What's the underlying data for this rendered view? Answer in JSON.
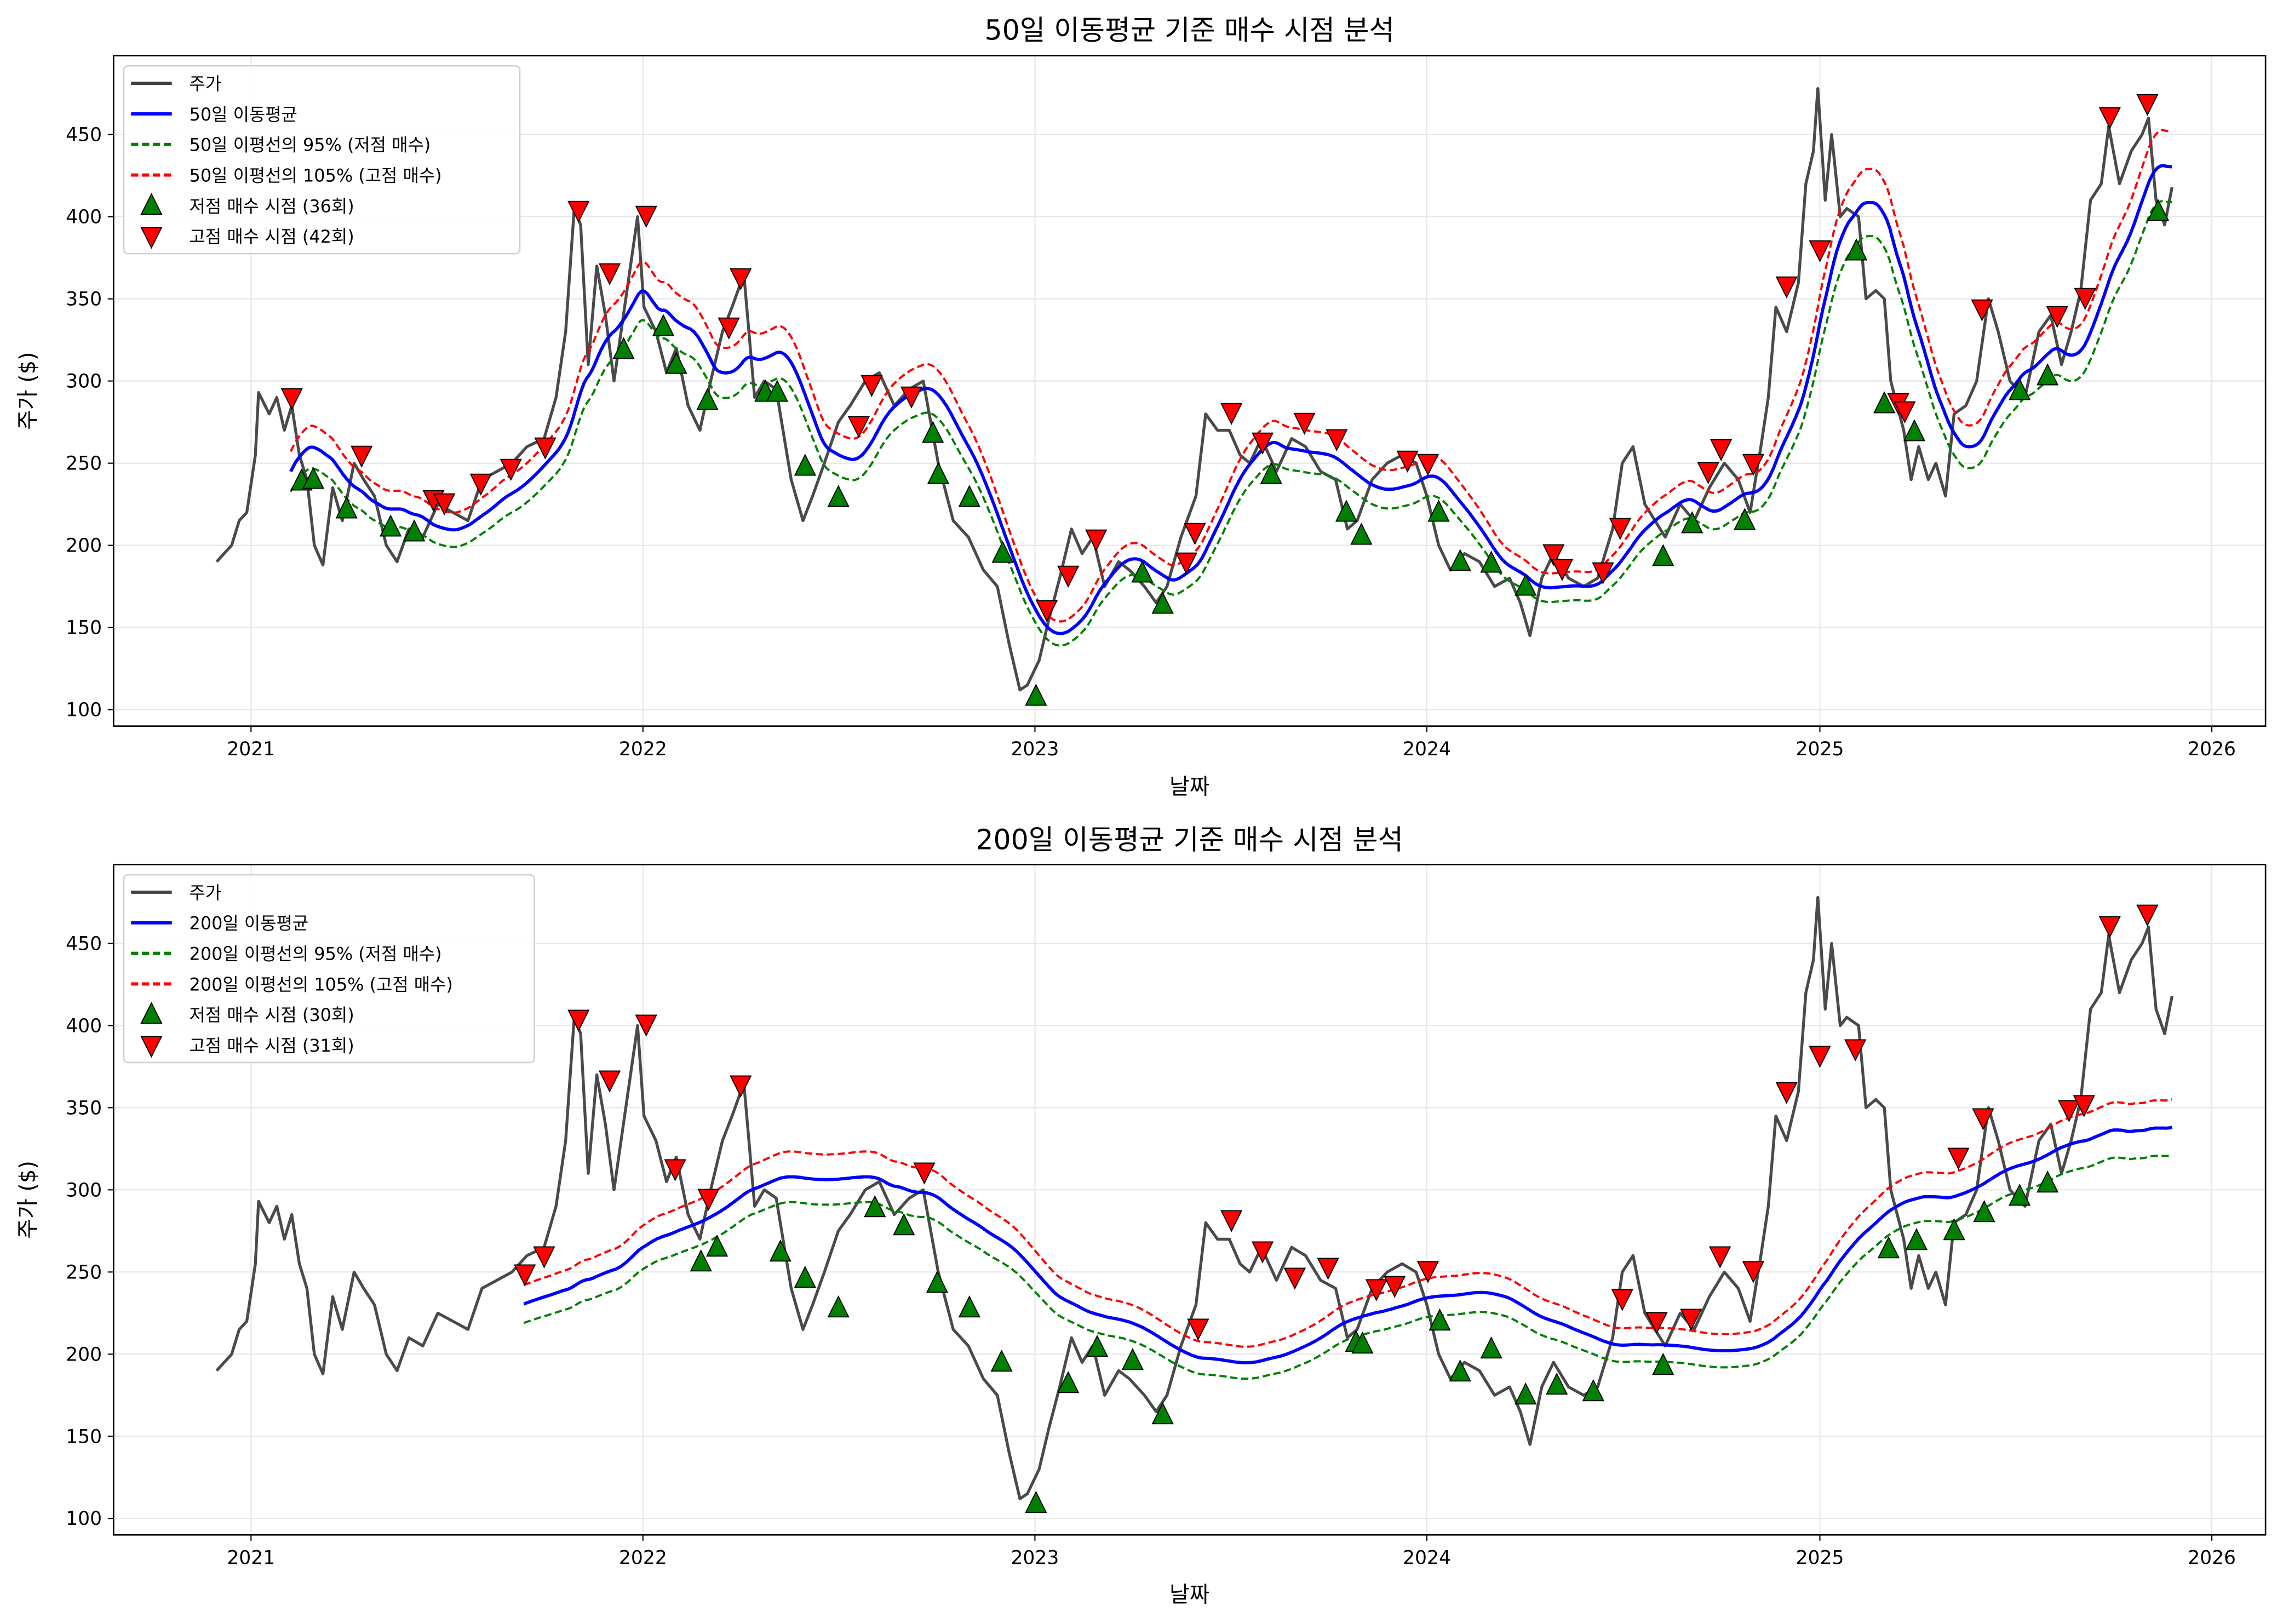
{
  "chart_data": [
    {
      "type": "line",
      "title": "50일 이동평균 기준 매수 시점 분석",
      "xlabel": "날짜",
      "ylabel": "주가 ($)",
      "xlim": [
        "2020-08-26",
        "2026-02-20"
      ],
      "ylim": [
        90,
        498
      ],
      "xticks": [
        "2021",
        "2022",
        "2023",
        "2024",
        "2025",
        "2026"
      ],
      "yticks": [
        100,
        150,
        200,
        250,
        300,
        350,
        400,
        450
      ],
      "grid": true,
      "legend_position": "top-left",
      "legend": [
        "주가",
        "50일 이동평균",
        "50일 이평선의 95% (저점 매수)",
        "50일 이평선의 105% (고점 매수)",
        "저점 매수 시점 (36회)",
        "고점 매수 시점 (42회)"
      ],
      "ma_window": 50,
      "band_low_pct": 95,
      "band_high_pct": 105,
      "colors": {
        "price": "#404040",
        "ma": "#0000ff",
        "band_low": "#008000",
        "band_high": "#ff0000",
        "low_marker": "#008000",
        "high_marker": "#ff0000"
      },
      "low_buy_points": [
        [
          "2021-02-17",
          239
        ],
        [
          "2021-02-28",
          240
        ],
        [
          "2021-03-31",
          222
        ],
        [
          "2021-05-11",
          211
        ],
        [
          "2021-06-02",
          208
        ],
        [
          "2021-12-14",
          319
        ],
        [
          "2022-01-20",
          333
        ],
        [
          "2022-02-01",
          310
        ],
        [
          "2022-03-02",
          288
        ],
        [
          "2022-04-25",
          293
        ],
        [
          "2022-05-06",
          293
        ],
        [
          "2022-06-01",
          248
        ],
        [
          "2022-07-02",
          229
        ],
        [
          "2022-09-28",
          268
        ],
        [
          "2022-10-03",
          243
        ],
        [
          "2022-11-01",
          229
        ],
        [
          "2022-12-02",
          195
        ],
        [
          "2023-01-02",
          108
        ],
        [
          "2023-04-11",
          183
        ],
        [
          "2023-04-30",
          164
        ],
        [
          "2023-08-09",
          243
        ],
        [
          "2023-10-18",
          220
        ],
        [
          "2023-11-01",
          206
        ],
        [
          "2024-01-12",
          220
        ],
        [
          "2024-02-01",
          190
        ],
        [
          "2024-03-01",
          189
        ],
        [
          "2024-04-02",
          175
        ],
        [
          "2024-08-08",
          193
        ],
        [
          "2024-09-04",
          213
        ],
        [
          "2024-10-23",
          215
        ],
        [
          "2025-02-04",
          379
        ],
        [
          "2025-03-02",
          286
        ],
        [
          "2025-03-30",
          269
        ],
        [
          "2025-07-06",
          294
        ],
        [
          "2025-08-01",
          303
        ],
        [
          "2025-11-12",
          403
        ]
      ],
      "high_buy_points": [
        [
          "2021-02-08",
          290
        ],
        [
          "2021-04-14",
          255
        ],
        [
          "2021-06-20",
          228
        ],
        [
          "2021-06-30",
          226
        ],
        [
          "2021-08-03",
          238
        ],
        [
          "2021-08-31",
          247
        ],
        [
          "2021-10-02",
          260
        ],
        [
          "2021-11-02",
          404
        ],
        [
          "2021-12-01",
          366
        ],
        [
          "2022-01-04",
          401
        ],
        [
          "2022-03-22",
          333
        ],
        [
          "2022-04-02",
          363
        ],
        [
          "2022-07-21",
          273
        ],
        [
          "2022-08-02",
          298
        ],
        [
          "2022-09-08",
          291
        ],
        [
          "2023-01-12",
          161
        ],
        [
          "2023-02-01",
          182
        ],
        [
          "2023-02-27",
          204
        ],
        [
          "2023-05-22",
          190
        ],
        [
          "2023-05-30",
          208
        ],
        [
          "2023-07-03",
          281
        ],
        [
          "2023-08-01",
          263
        ],
        [
          "2023-09-09",
          275
        ],
        [
          "2023-10-09",
          265
        ],
        [
          "2023-12-14",
          252
        ],
        [
          "2024-01-02",
          250
        ],
        [
          "2024-04-28",
          195
        ],
        [
          "2024-05-06",
          186
        ],
        [
          "2024-06-13",
          184
        ],
        [
          "2024-06-29",
          211
        ],
        [
          "2024-09-19",
          245
        ],
        [
          "2024-10-01",
          259
        ],
        [
          "2024-10-31",
          250
        ],
        [
          "2024-12-01",
          358
        ],
        [
          "2025-01-01",
          380
        ],
        [
          "2025-03-15",
          287
        ],
        [
          "2025-03-21",
          282
        ],
        [
          "2025-06-01",
          344
        ],
        [
          "2025-08-10",
          340
        ],
        [
          "2025-09-05",
          351
        ],
        [
          "2025-09-28",
          461
        ],
        [
          "2025-11-02",
          469
        ]
      ]
    },
    {
      "type": "line",
      "title": "200일 이동평균 기준 매수 시점 분석",
      "xlabel": "날짜",
      "ylabel": "주가 ($)",
      "xlim": [
        "2020-08-26",
        "2026-02-20"
      ],
      "ylim": [
        90,
        498
      ],
      "xticks": [
        "2021",
        "2022",
        "2023",
        "2024",
        "2025",
        "2026"
      ],
      "yticks": [
        100,
        150,
        200,
        250,
        300,
        350,
        400,
        450
      ],
      "grid": true,
      "legend_position": "top-left",
      "legend": [
        "주가",
        "200일 이동평균",
        "200일 이평선의 95% (저점 매수)",
        "200일 이평선의 105% (고점 매수)",
        "저점 매수 시점 (30회)",
        "고점 매수 시점 (31회)"
      ],
      "ma_window": 200,
      "band_low_pct": 95,
      "band_high_pct": 105,
      "colors": {
        "price": "#404040",
        "ma": "#0000ff",
        "band_low": "#008000",
        "band_high": "#ff0000",
        "low_marker": "#008000",
        "high_marker": "#ff0000"
      },
      "low_buy_points": [
        [
          "2022-02-24",
          256
        ],
        [
          "2022-03-11",
          265
        ],
        [
          "2022-05-09",
          262
        ],
        [
          "2022-06-01",
          246
        ],
        [
          "2022-07-02",
          228
        ],
        [
          "2022-08-05",
          289
        ],
        [
          "2022-09-01",
          278
        ],
        [
          "2022-10-02",
          243
        ],
        [
          "2022-11-01",
          228
        ],
        [
          "2022-12-01",
          195
        ],
        [
          "2023-01-02",
          109
        ],
        [
          "2023-02-01",
          182
        ],
        [
          "2023-02-28",
          204
        ],
        [
          "2023-04-02",
          196
        ],
        [
          "2023-04-30",
          163
        ],
        [
          "2023-10-27",
          207
        ],
        [
          "2023-11-02",
          206
        ],
        [
          "2024-01-13",
          220
        ],
        [
          "2024-02-01",
          189
        ],
        [
          "2024-03-01",
          203
        ],
        [
          "2024-04-02",
          175
        ],
        [
          "2024-05-01",
          181
        ],
        [
          "2024-06-04",
          177
        ],
        [
          "2024-08-08",
          193
        ],
        [
          "2025-03-06",
          264
        ],
        [
          "2025-04-01",
          269
        ],
        [
          "2025-05-06",
          275
        ],
        [
          "2025-06-03",
          286
        ],
        [
          "2025-07-06",
          296
        ],
        [
          "2025-08-01",
          304
        ]
      ],
      "high_buy_points": [
        [
          "2021-09-13",
          249
        ],
        [
          "2021-10-01",
          260
        ],
        [
          "2021-11-02",
          404
        ],
        [
          "2021-12-01",
          367
        ],
        [
          "2022-01-04",
          401
        ],
        [
          "2022-01-31",
          313
        ],
        [
          "2022-03-03",
          295
        ],
        [
          "2022-04-02",
          364
        ],
        [
          "2022-09-20",
          311
        ],
        [
          "2023-06-02",
          216
        ],
        [
          "2023-07-03",
          282
        ],
        [
          "2023-08-01",
          263
        ],
        [
          "2023-08-31",
          247
        ],
        [
          "2023-10-01",
          253
        ],
        [
          "2023-11-15",
          240
        ],
        [
          "2023-12-02",
          242
        ],
        [
          "2024-01-02",
          251
        ],
        [
          "2024-07-01",
          234
        ],
        [
          "2024-08-02",
          220
        ],
        [
          "2024-09-03",
          222
        ],
        [
          "2024-09-30",
          260
        ],
        [
          "2024-10-31",
          251
        ],
        [
          "2024-12-01",
          360
        ],
        [
          "2025-01-01",
          382
        ],
        [
          "2025-02-03",
          386
        ],
        [
          "2025-05-10",
          320
        ],
        [
          "2025-06-02",
          344
        ],
        [
          "2025-08-21",
          349
        ],
        [
          "2025-09-04",
          352
        ],
        [
          "2025-09-28",
          461
        ],
        [
          "2025-11-02",
          468
        ]
      ]
    }
  ],
  "price_series": [
    [
      "2020-11-30",
      190
    ],
    [
      "2020-12-14",
      200
    ],
    [
      "2020-12-21",
      215
    ],
    [
      "2020-12-28",
      220
    ],
    [
      "2021-01-05",
      255
    ],
    [
      "2021-01-08",
      293
    ],
    [
      "2021-01-18",
      280
    ],
    [
      "2021-01-25",
      290
    ],
    [
      "2021-02-01",
      270
    ],
    [
      "2021-02-08",
      285
    ],
    [
      "2021-02-15",
      255
    ],
    [
      "2021-02-22",
      240
    ],
    [
      "2021-03-01",
      200
    ],
    [
      "2021-03-09",
      188
    ],
    [
      "2021-03-18",
      235
    ],
    [
      "2021-03-27",
      215
    ],
    [
      "2021-04-07",
      250
    ],
    [
      "2021-04-16",
      240
    ],
    [
      "2021-04-26",
      230
    ],
    [
      "2021-05-07",
      200
    ],
    [
      "2021-05-17",
      190
    ],
    [
      "2021-05-28",
      210
    ],
    [
      "2021-06-10",
      205
    ],
    [
      "2021-06-24",
      225
    ],
    [
      "2021-07-08",
      220
    ],
    [
      "2021-07-22",
      215
    ],
    [
      "2021-08-04",
      240
    ],
    [
      "2021-08-18",
      245
    ],
    [
      "2021-09-01",
      250
    ],
    [
      "2021-09-15",
      260
    ],
    [
      "2021-10-01",
      265
    ],
    [
      "2021-10-12",
      290
    ],
    [
      "2021-10-21",
      330
    ],
    [
      "2021-10-29",
      405
    ],
    [
      "2021-11-04",
      395
    ],
    [
      "2021-11-11",
      310
    ],
    [
      "2021-11-19",
      370
    ],
    [
      "2021-11-27",
      340
    ],
    [
      "2021-12-05",
      300
    ],
    [
      "2021-12-16",
      350
    ],
    [
      "2021-12-27",
      400
    ],
    [
      "2022-01-02",
      345
    ],
    [
      "2022-01-13",
      330
    ],
    [
      "2022-01-23",
      305
    ],
    [
      "2022-02-01",
      320
    ],
    [
      "2022-02-12",
      285
    ],
    [
      "2022-02-23",
      270
    ],
    [
      "2022-03-05",
      300
    ],
    [
      "2022-03-16",
      330
    ],
    [
      "2022-03-25",
      345
    ],
    [
      "2022-04-05",
      365
    ],
    [
      "2022-04-15",
      290
    ],
    [
      "2022-04-24",
      300
    ],
    [
      "2022-05-05",
      295
    ],
    [
      "2022-05-19",
      240
    ],
    [
      "2022-05-30",
      215
    ],
    [
      "2022-06-08",
      230
    ],
    [
      "2022-06-19",
      250
    ],
    [
      "2022-07-02",
      275
    ],
    [
      "2022-07-13",
      285
    ],
    [
      "2022-07-27",
      300
    ],
    [
      "2022-08-09",
      305
    ],
    [
      "2022-08-23",
      285
    ],
    [
      "2022-09-06",
      295
    ],
    [
      "2022-09-19",
      300
    ],
    [
      "2022-10-03",
      250
    ],
    [
      "2022-10-17",
      215
    ],
    [
      "2022-10-31",
      205
    ],
    [
      "2022-11-14",
      185
    ],
    [
      "2022-11-27",
      175
    ],
    [
      "2022-12-08",
      140
    ],
    [
      "2022-12-18",
      112
    ],
    [
      "2022-12-25",
      115
    ],
    [
      "2023-01-05",
      130
    ],
    [
      "2023-01-14",
      155
    ],
    [
      "2023-01-24",
      180
    ],
    [
      "2023-02-04",
      210
    ],
    [
      "2023-02-14",
      195
    ],
    [
      "2023-02-24",
      205
    ],
    [
      "2023-03-07",
      175
    ],
    [
      "2023-03-20",
      190
    ],
    [
      "2023-03-30",
      185
    ],
    [
      "2023-04-13",
      175
    ],
    [
      "2023-04-24",
      165
    ],
    [
      "2023-05-04",
      175
    ],
    [
      "2023-05-17",
      205
    ],
    [
      "2023-05-31",
      230
    ],
    [
      "2023-06-09",
      280
    ],
    [
      "2023-06-20",
      270
    ],
    [
      "2023-07-01",
      270
    ],
    [
      "2023-07-11",
      255
    ],
    [
      "2023-07-20",
      250
    ],
    [
      "2023-07-31",
      265
    ],
    [
      "2023-08-14",
      245
    ],
    [
      "2023-08-28",
      265
    ],
    [
      "2023-09-10",
      260
    ],
    [
      "2023-09-24",
      245
    ],
    [
      "2023-10-08",
      240
    ],
    [
      "2023-10-19",
      210
    ],
    [
      "2023-10-28",
      215
    ],
    [
      "2023-11-11",
      240
    ],
    [
      "2023-11-25",
      250
    ],
    [
      "2023-12-09",
      255
    ],
    [
      "2023-12-22",
      250
    ],
    [
      "2024-01-01",
      230
    ],
    [
      "2024-01-12",
      200
    ],
    [
      "2024-01-23",
      185
    ],
    [
      "2024-02-05",
      195
    ],
    [
      "2024-02-19",
      190
    ],
    [
      "2024-03-04",
      175
    ],
    [
      "2024-03-18",
      180
    ],
    [
      "2024-03-28",
      165
    ],
    [
      "2024-04-06",
      145
    ],
    [
      "2024-04-17",
      180
    ],
    [
      "2024-04-28",
      195
    ],
    [
      "2024-05-12",
      180
    ],
    [
      "2024-05-26",
      175
    ],
    [
      "2024-06-08",
      180
    ],
    [
      "2024-06-22",
      210
    ],
    [
      "2024-07-01",
      250
    ],
    [
      "2024-07-11",
      260
    ],
    [
      "2024-07-22",
      225
    ],
    [
      "2024-08-10",
      205
    ],
    [
      "2024-08-24",
      225
    ],
    [
      "2024-09-06",
      215
    ],
    [
      "2024-09-20",
      235
    ],
    [
      "2024-10-04",
      250
    ],
    [
      "2024-10-17",
      240
    ],
    [
      "2024-10-28",
      220
    ],
    [
      "2024-11-07",
      260
    ],
    [
      "2024-11-14",
      290
    ],
    [
      "2024-11-21",
      345
    ],
    [
      "2024-12-01",
      330
    ],
    [
      "2024-12-12",
      360
    ],
    [
      "2024-12-19",
      420
    ],
    [
      "2024-12-26",
      440
    ],
    [
      "2024-12-30",
      478
    ],
    [
      "2025-01-06",
      410
    ],
    [
      "2025-01-12",
      450
    ],
    [
      "2025-01-20",
      400
    ],
    [
      "2025-01-26",
      405
    ],
    [
      "2025-02-06",
      400
    ],
    [
      "2025-02-13",
      350
    ],
    [
      "2025-02-22",
      355
    ],
    [
      "2025-03-02",
      350
    ],
    [
      "2025-03-08",
      300
    ],
    [
      "2025-03-20",
      270
    ],
    [
      "2025-03-27",
      240
    ],
    [
      "2025-04-03",
      260
    ],
    [
      "2025-04-12",
      240
    ],
    [
      "2025-04-19",
      250
    ],
    [
      "2025-04-28",
      230
    ],
    [
      "2025-05-06",
      280
    ],
    [
      "2025-05-17",
      285
    ],
    [
      "2025-05-27",
      300
    ],
    [
      "2025-06-07",
      350
    ],
    [
      "2025-06-16",
      330
    ],
    [
      "2025-06-27",
      300
    ],
    [
      "2025-07-11",
      290
    ],
    [
      "2025-07-24",
      330
    ],
    [
      "2025-08-04",
      340
    ],
    [
      "2025-08-14",
      310
    ],
    [
      "2025-08-23",
      330
    ],
    [
      "2025-09-01",
      355
    ],
    [
      "2025-09-10",
      410
    ],
    [
      "2025-09-20",
      420
    ],
    [
      "2025-09-27",
      455
    ],
    [
      "2025-10-07",
      420
    ],
    [
      "2025-10-18",
      440
    ],
    [
      "2025-10-28",
      450
    ],
    [
      "2025-11-03",
      460
    ],
    [
      "2025-11-10",
      410
    ],
    [
      "2025-11-18",
      395
    ],
    [
      "2025-11-25",
      418
    ]
  ]
}
